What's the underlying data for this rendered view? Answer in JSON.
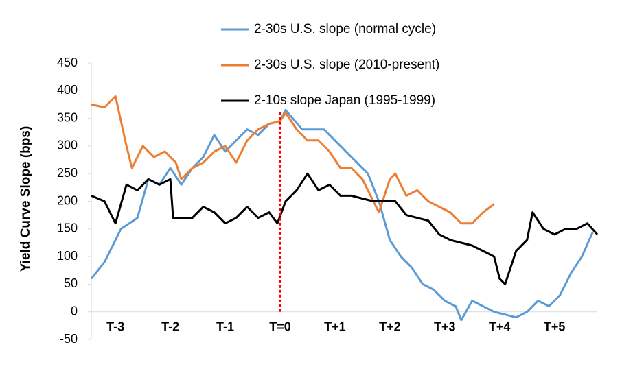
{
  "chart_data": {
    "type": "line",
    "y_label": "Yield Curve Slope (bps)",
    "xlim": [
      -3.44,
      5.78
    ],
    "ylim": [
      -50,
      450
    ],
    "yticks": [
      -50,
      0,
      50,
      100,
      150,
      200,
      250,
      300,
      350,
      400,
      450
    ],
    "xticks": [
      {
        "value": -3,
        "label": "T-3"
      },
      {
        "value": -2,
        "label": "T-2"
      },
      {
        "value": -1,
        "label": "T-1"
      },
      {
        "value": 0,
        "label": "T=0"
      },
      {
        "value": 1,
        "label": "T+1"
      },
      {
        "value": 2,
        "label": "T+2"
      },
      {
        "value": 3,
        "label": "T+3"
      },
      {
        "value": 4,
        "label": "T+4"
      },
      {
        "value": 5,
        "label": "T+5"
      }
    ],
    "vline": {
      "x": 0,
      "from": 0,
      "to": 362,
      "color": "#ff0000"
    },
    "series": [
      {
        "name": "2-30s U.S. slope (normal cycle)",
        "color": "#5b9bd5",
        "x": [
          -3.44,
          -3.2,
          -2.9,
          -2.6,
          -2.4,
          -2.2,
          -2.0,
          -1.8,
          -1.6,
          -1.4,
          -1.2,
          -1.0,
          -0.8,
          -0.6,
          -0.4,
          -0.2,
          0,
          0.1,
          0.4,
          0.8,
          1.0,
          1.2,
          1.4,
          1.6,
          1.8,
          2.0,
          2.2,
          2.4,
          2.6,
          2.8,
          3.0,
          3.2,
          3.3,
          3.5,
          3.7,
          3.9,
          4.1,
          4.3,
          4.5,
          4.7,
          4.9,
          5.1,
          5.3,
          5.5,
          5.7
        ],
        "values": [
          60,
          90,
          150,
          170,
          240,
          230,
          260,
          230,
          260,
          280,
          320,
          290,
          310,
          330,
          320,
          340,
          345,
          365,
          330,
          330,
          310,
          290,
          270,
          250,
          200,
          130,
          100,
          80,
          50,
          40,
          20,
          10,
          -15,
          20,
          10,
          0,
          -5,
          -10,
          0,
          20,
          10,
          30,
          70,
          100,
          145
        ]
      },
      {
        "name": "2-30s U.S. slope (2010-present)",
        "color": "#ed7d31",
        "x": [
          -3.44,
          -3.2,
          -3.0,
          -2.8,
          -2.7,
          -2.5,
          -2.3,
          -2.1,
          -1.9,
          -1.8,
          -1.6,
          -1.4,
          -1.2,
          -1.0,
          -0.8,
          -0.6,
          -0.4,
          -0.2,
          0,
          0.1,
          0.3,
          0.5,
          0.7,
          0.9,
          1.1,
          1.3,
          1.5,
          1.7,
          1.8,
          2.0,
          2.1,
          2.3,
          2.5,
          2.7,
          2.9,
          3.1,
          3.3,
          3.5,
          3.7,
          3.9
        ],
        "values": [
          375,
          370,
          390,
          300,
          260,
          300,
          280,
          290,
          270,
          240,
          260,
          270,
          290,
          300,
          270,
          310,
          330,
          340,
          345,
          360,
          330,
          310,
          310,
          290,
          260,
          260,
          240,
          200,
          180,
          240,
          250,
          210,
          220,
          200,
          190,
          180,
          160,
          160,
          180,
          195
        ]
      },
      {
        "name": "2-10s slope Japan (1995-1999)",
        "color": "#000000",
        "x": [
          -3.44,
          -3.2,
          -3.0,
          -2.8,
          -2.6,
          -2.4,
          -2.2,
          -2.0,
          -1.95,
          -1.8,
          -1.6,
          -1.4,
          -1.2,
          -1.0,
          -0.8,
          -0.6,
          -0.4,
          -0.2,
          -0.05,
          0.1,
          0.3,
          0.5,
          0.7,
          0.9,
          1.1,
          1.3,
          1.5,
          1.7,
          1.9,
          2.1,
          2.3,
          2.5,
          2.7,
          2.9,
          3.1,
          3.3,
          3.5,
          3.7,
          3.9,
          4.0,
          4.1,
          4.3,
          4.5,
          4.6,
          4.8,
          5.0,
          5.2,
          5.4,
          5.6,
          5.78
        ],
        "values": [
          210,
          200,
          160,
          230,
          220,
          240,
          230,
          240,
          170,
          170,
          170,
          190,
          180,
          160,
          170,
          190,
          170,
          180,
          160,
          200,
          220,
          250,
          220,
          230,
          210,
          210,
          205,
          200,
          200,
          200,
          175,
          170,
          165,
          140,
          130,
          125,
          120,
          110,
          100,
          60,
          50,
          110,
          130,
          180,
          150,
          140,
          150,
          150,
          160,
          140
        ]
      }
    ]
  }
}
